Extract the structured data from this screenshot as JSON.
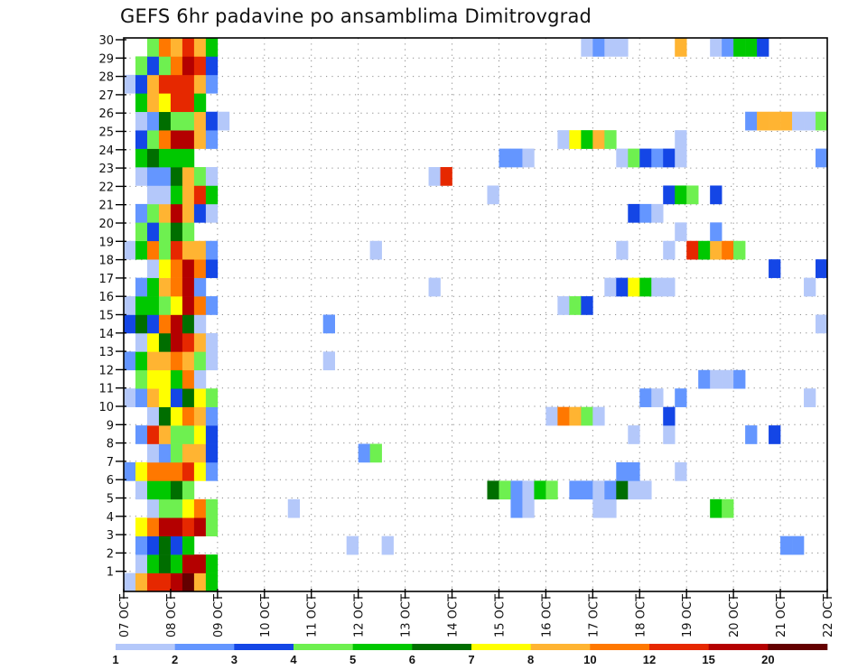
{
  "chart_data": {
    "type": "heatmap",
    "title": "GEFS 6hr padavine po ansamblima Dimitrovgrad",
    "xlabel": "",
    "ylabel": "",
    "time_start": "07 OCT 00Z",
    "time_step_hours": 6,
    "num_steps": 60,
    "x_tick_labels": [
      "07 OCT",
      "08 OCT",
      "09 OCT",
      "10 OCT",
      "11 OCT",
      "12 OCT",
      "13 OCT",
      "14 OCT",
      "15 OCT",
      "16 OCT",
      "17 OCT",
      "18 OCT",
      "19 OCT",
      "20 OCT",
      "21 OCT",
      "22 OCT"
    ],
    "y_tick_labels": [
      "1",
      "2",
      "3",
      "4",
      "5",
      "6",
      "7",
      "8",
      "9",
      "10",
      "11",
      "12",
      "13",
      "14",
      "15",
      "16",
      "17",
      "18",
      "19",
      "20",
      "21",
      "22",
      "23",
      "24",
      "25",
      "26",
      "27",
      "28",
      "29",
      "30"
    ],
    "ylim": [
      1,
      30
    ],
    "grid": true,
    "colorbar": {
      "placement": "bottom",
      "levels": [
        1,
        2,
        3,
        4,
        5,
        6,
        7,
        8,
        10,
        12,
        15,
        20
      ],
      "labels": [
        "1",
        "2",
        "3",
        "4",
        "5",
        "6",
        "7",
        "8",
        "10",
        "12",
        "15",
        "20"
      ],
      "colors": [
        "#b4c8fa",
        "#6496ff",
        "#1446e6",
        "#6ef050",
        "#00c800",
        "#006e00",
        "#ffff00",
        "#ffb432",
        "#ff7800",
        "#e62800",
        "#b40000",
        "#640000"
      ]
    },
    "value_note": "cell value = lower bound of precipitation class (mm/6h); keys = member -> {time step index: value}",
    "cells": {
      "30": {
        "2": 4,
        "3": 10,
        "4": 8,
        "5": 12,
        "6": 8,
        "7": 5,
        "39": 1,
        "40": 2,
        "41": 1,
        "42": 1,
        "47": 8,
        "50": 1,
        "51": 2,
        "52": 5,
        "53": 5,
        "54": 3
      },
      "29": {
        "1": 4,
        "2": 3,
        "3": 4,
        "4": 10,
        "5": 15,
        "6": 12,
        "7": 3
      },
      "28": {
        "0": 1,
        "1": 3,
        "2": 8,
        "3": 12,
        "4": 12,
        "5": 12,
        "6": 8,
        "7": 2
      },
      "27": {
        "1": 5,
        "2": 8,
        "3": 7,
        "4": 12,
        "5": 12,
        "6": 5
      },
      "26": {
        "1": 1,
        "2": 2,
        "3": 6,
        "4": 4,
        "5": 4,
        "6": 8,
        "7": 3,
        "8": 1,
        "53": 2,
        "54": 8,
        "55": 8,
        "56": 8,
        "57": 1,
        "58": 1,
        "59": 4
      },
      "25": {
        "1": 3,
        "2": 4,
        "3": 10,
        "4": 15,
        "5": 15,
        "6": 8,
        "7": 2,
        "37": 1,
        "38": 7,
        "39": 5,
        "40": 8,
        "41": 4,
        "47": 1
      },
      "24": {
        "1": 5,
        "2": 6,
        "3": 5,
        "4": 5,
        "5": 5,
        "32": 2,
        "33": 2,
        "34": 1,
        "42": 1,
        "43": 4,
        "44": 3,
        "45": 2,
        "46": 3,
        "47": 1,
        "59": 2
      },
      "23": {
        "1": 1,
        "2": 2,
        "3": 2,
        "4": 6,
        "5": 8,
        "6": 4,
        "7": 1,
        "26": 1,
        "27": 12
      },
      "22": {
        "2": 1,
        "3": 1,
        "4": 5,
        "5": 8,
        "6": 12,
        "7": 5,
        "31": 1,
        "46": 3,
        "47": 5,
        "48": 4,
        "50": 3
      },
      "21": {
        "1": 2,
        "2": 4,
        "3": 8,
        "4": 15,
        "5": 8,
        "6": 3,
        "7": 1,
        "43": 3,
        "44": 2,
        "45": 1
      },
      "20": {
        "1": 4,
        "2": 3,
        "3": 4,
        "4": 6,
        "5": 4,
        "47": 1,
        "50": 2
      },
      "19": {
        "0": 1,
        "1": 5,
        "2": 10,
        "3": 4,
        "4": 12,
        "5": 8,
        "6": 8,
        "7": 2,
        "21": 1,
        "42": 1,
        "46": 1,
        "48": 12,
        "49": 5,
        "50": 8,
        "51": 10,
        "52": 4
      },
      "18": {
        "2": 1,
        "3": 7,
        "4": 10,
        "5": 15,
        "6": 10,
        "7": 3,
        "55": 3,
        "59": 3
      },
      "17": {
        "1": 2,
        "2": 5,
        "3": 8,
        "4": 10,
        "5": 15,
        "6": 2,
        "26": 1,
        "41": 1,
        "42": 3,
        "43": 7,
        "44": 5,
        "45": 1,
        "46": 1,
        "58": 1
      },
      "16": {
        "0": 1,
        "1": 5,
        "2": 5,
        "3": 4,
        "4": 7,
        "5": 15,
        "6": 10,
        "7": 2,
        "37": 1,
        "38": 4,
        "39": 3
      },
      "15": {
        "0": 3,
        "1": 6,
        "2": 3,
        "3": 10,
        "4": 15,
        "5": 6,
        "6": 1,
        "17": 2,
        "59": 1
      },
      "14": {
        "1": 1,
        "2": 7,
        "3": 6,
        "4": 15,
        "5": 12,
        "6": 8,
        "7": 1
      },
      "13": {
        "0": 2,
        "1": 5,
        "2": 8,
        "3": 8,
        "4": 10,
        "5": 8,
        "6": 4,
        "7": 1,
        "17": 1
      },
      "12": {
        "1": 4,
        "2": 7,
        "3": 7,
        "4": 5,
        "5": 10,
        "6": 1,
        "49": 2,
        "50": 1,
        "51": 1,
        "52": 2
      },
      "11": {
        "0": 1,
        "1": 2,
        "2": 8,
        "3": 7,
        "4": 3,
        "5": 6,
        "6": 7,
        "7": 4,
        "44": 2,
        "45": 1,
        "47": 2,
        "58": 1
      },
      "10": {
        "2": 1,
        "3": 6,
        "4": 7,
        "5": 10,
        "6": 8,
        "7": 2,
        "36": 1,
        "37": 10,
        "38": 8,
        "39": 4,
        "40": 1,
        "46": 3
      },
      "9": {
        "1": 2,
        "2": 12,
        "3": 8,
        "4": 4,
        "5": 4,
        "6": 7,
        "7": 3,
        "43": 1,
        "46": 1,
        "53": 2,
        "55": 3
      },
      "8": {
        "2": 1,
        "3": 2,
        "4": 4,
        "5": 8,
        "6": 8,
        "7": 3,
        "20": 2,
        "21": 4
      },
      "7": {
        "0": 2,
        "1": 7,
        "2": 10,
        "3": 10,
        "4": 10,
        "5": 12,
        "6": 7,
        "7": 2,
        "42": 2,
        "43": 2,
        "47": 1
      },
      "6": {
        "1": 1,
        "2": 5,
        "3": 5,
        "4": 6,
        "5": 4,
        "31": 6,
        "32": 4,
        "33": 2,
        "34": 1,
        "35": 5,
        "36": 4,
        "38": 2,
        "39": 2,
        "40": 1,
        "41": 2,
        "42": 6,
        "43": 1,
        "44": 1
      },
      "5": {
        "2": 1,
        "3": 4,
        "4": 4,
        "5": 7,
        "6": 10,
        "7": 4,
        "14": 1,
        "33": 2,
        "34": 1,
        "40": 1,
        "41": 1,
        "50": 5,
        "51": 4
      },
      "4": {
        "1": 7,
        "2": 10,
        "3": 15,
        "4": 15,
        "5": 12,
        "6": 15,
        "7": 4
      },
      "3": {
        "1": 2,
        "2": 3,
        "3": 6,
        "4": 3,
        "5": 5,
        "19": 1,
        "22": 1,
        "56": 2,
        "57": 2
      },
      "2": {
        "1": 1,
        "2": 5,
        "3": 6,
        "4": 5,
        "5": 15,
        "6": 15,
        "7": 5
      },
      "1": {
        "0": 1,
        "1": 8,
        "2": 12,
        "3": 12,
        "4": 15,
        "5": 20,
        "6": 8,
        "7": 5
      }
    }
  }
}
